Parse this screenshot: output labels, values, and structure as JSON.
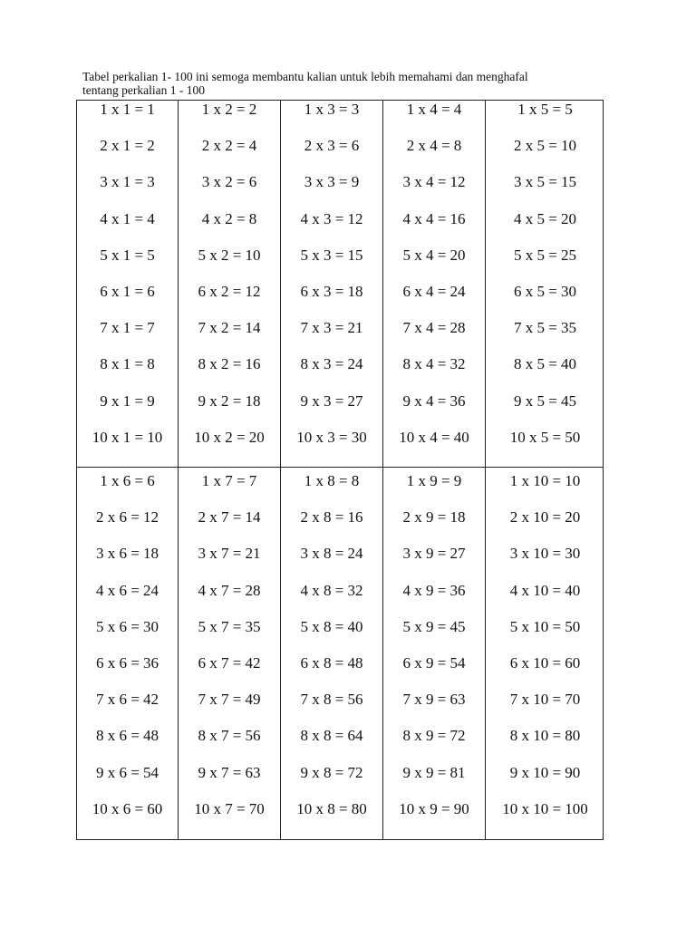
{
  "intro": {
    "line1": "Tabel perkalian 1- 100 ini semoga membantu kalian untuk lebih memahami dan menghafal",
    "line2": "tentang perkalian 1 - 100"
  },
  "blocks": [
    {
      "columns": [
        [
          "1 x 1 = 1",
          "2 x 1 = 2",
          "3 x 1 = 3",
          "4 x 1 = 4",
          "5 x 1 = 5",
          "6 x 1 = 6",
          "7 x 1 = 7",
          "8 x 1 = 8",
          "9 x 1 = 9",
          "10 x 1 = 10"
        ],
        [
          "1 x 2 = 2",
          "2 x 2 = 4",
          "3 x 2 = 6",
          "4 x 2 = 8",
          "5 x 2 = 10",
          "6 x 2 = 12",
          "7 x 2 = 14",
          "8 x 2 = 16",
          "9 x 2 = 18",
          "10 x 2 = 20"
        ],
        [
          "1 x 3 = 3",
          "2 x 3 = 6",
          "3 x 3 = 9",
          "4 x 3 = 12",
          "5 x 3 = 15",
          "6 x 3 = 18",
          "7 x 3 = 21",
          "8 x 3 = 24",
          "9 x 3 = 27",
          "10 x 3 = 30"
        ],
        [
          "1 x 4 = 4",
          "2 x 4 = 8",
          "3 x 4 = 12",
          "4 x 4 = 16",
          "5 x 4 = 20",
          "6 x 4 = 24",
          "7 x 4 = 28",
          "8 x 4 = 32",
          "9 x 4 = 36",
          "10 x 4 = 40"
        ],
        [
          "1 x 5 = 5",
          "2 x 5 = 10",
          "3 x 5 = 15",
          "4 x 5 = 20",
          "5 x 5 = 25",
          "6 x 5 = 30",
          "7 x 5 = 35",
          "8 x 5 = 40",
          "9 x 5 = 45",
          "10 x 5 = 50"
        ]
      ]
    },
    {
      "columns": [
        [
          "1 x 6 = 6",
          "2 x 6 = 12",
          "3 x 6 = 18",
          "4 x 6 = 24",
          "5 x 6 = 30",
          "6 x 6 = 36",
          "7 x 6 = 42",
          "8 x 6 = 48",
          "9 x 6 = 54",
          "10 x 6 = 60"
        ],
        [
          "1 x 7 = 7",
          "2 x 7 = 14",
          "3 x 7 = 21",
          "4 x 7 = 28",
          "5 x 7 = 35",
          "6 x 7 = 42",
          "7 x 7 = 49",
          "8 x 7 = 56",
          "9 x 7 = 63",
          "10 x 7 = 70"
        ],
        [
          "1 x 8 = 8",
          "2 x 8 = 16",
          "3 x 8 = 24",
          "4 x 8 = 32",
          "5 x 8 = 40",
          "6 x 8 = 48",
          "7 x 8 = 56",
          "8 x 8 = 64",
          "9 x 8 = 72",
          "10 x 8 = 80"
        ],
        [
          "1 x 9 = 9",
          "2 x 9 = 18",
          "3 x 9 = 27",
          "4 x 9 = 36",
          "5 x 9 = 45",
          "6 x 9 = 54",
          "7 x 9 = 63",
          "8 x 9 = 72",
          "9 x 9 = 81",
          "10 x 9 = 90"
        ],
        [
          "1 x 10 = 10",
          "2 x 10 = 20",
          "3 x 10 = 30",
          "4 x 10 = 40",
          "5 x 10 = 50",
          "6 x 10 = 60",
          "7 x 10 = 70",
          "8 x 10 = 80",
          "9 x 10 = 90",
          "10 x 10 = 100"
        ]
      ]
    }
  ]
}
